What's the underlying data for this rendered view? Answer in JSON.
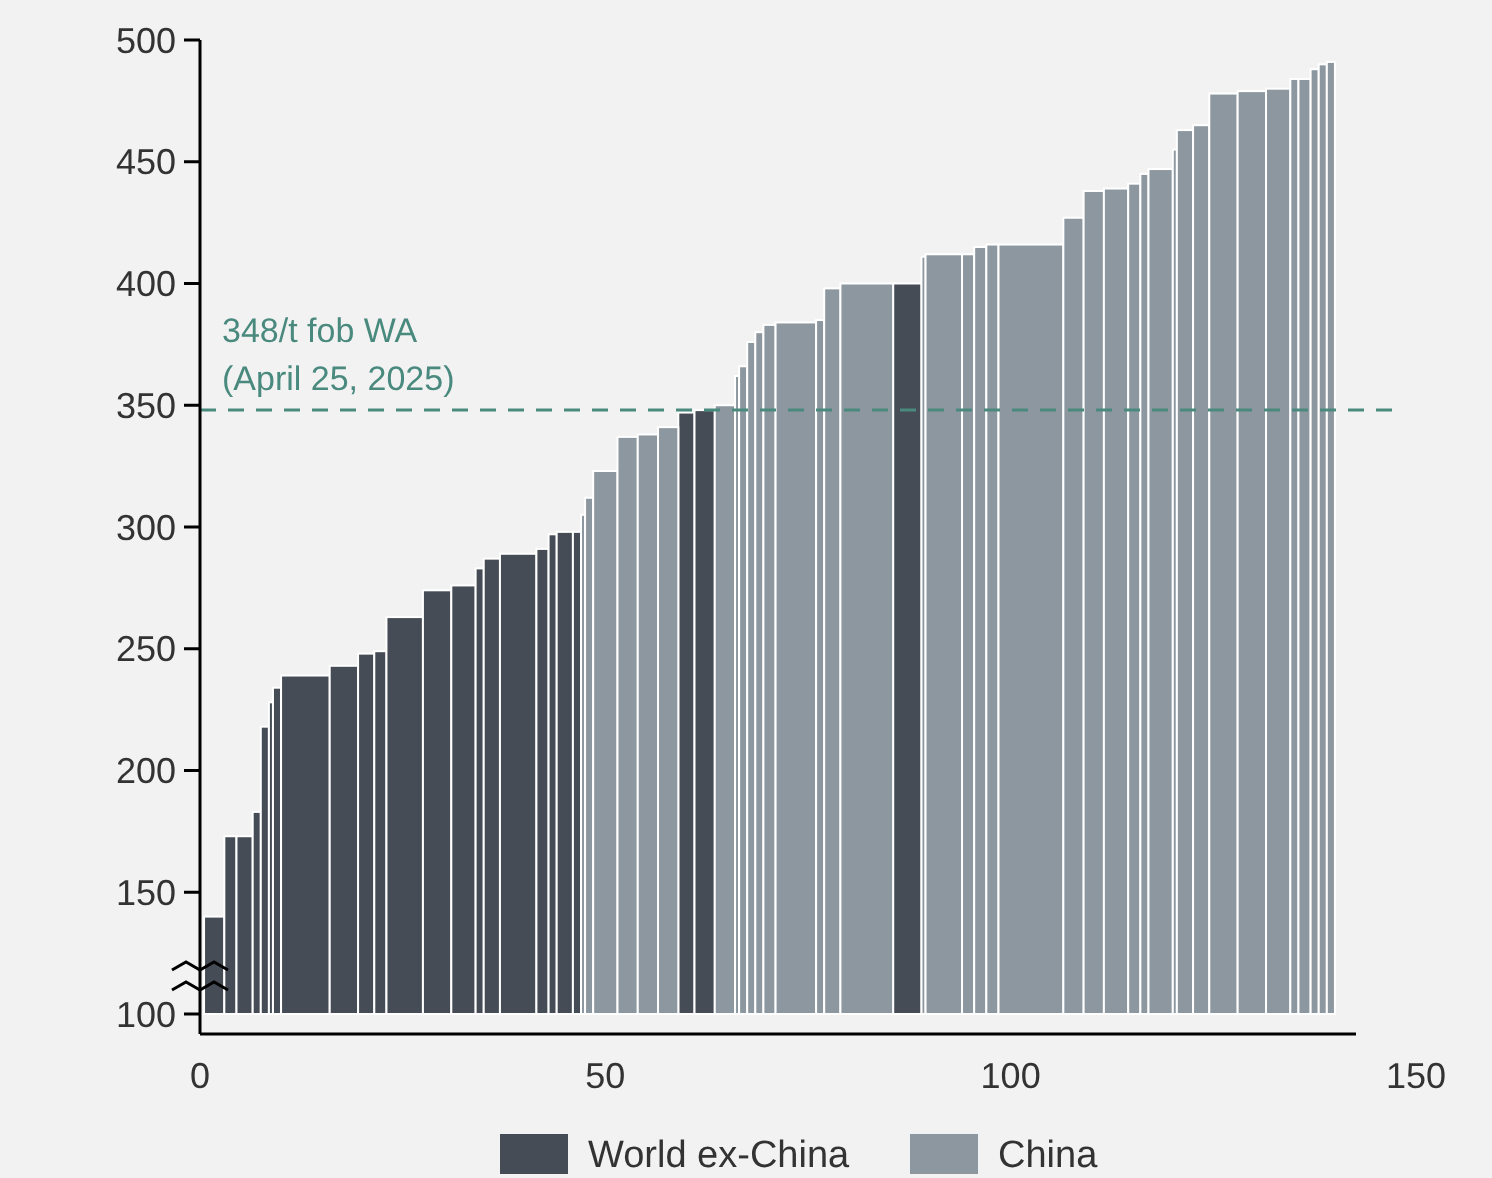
{
  "chart_data": {
    "type": "histogram",
    "bins": [
      0.5,
      3,
      4.5,
      6.5,
      7.5,
      8.5,
      9,
      10,
      16,
      19.5,
      21.5,
      23,
      27.5,
      31,
      34,
      35,
      37,
      41.5,
      43,
      44,
      46,
      47,
      47.5,
      48.5,
      51.5,
      54,
      56.5,
      59,
      61,
      63.5,
      66,
      66.5,
      67.5,
      68.5,
      69.5,
      71,
      76,
      77,
      79,
      85.5,
      89,
      89.5,
      94,
      95.5,
      97,
      98.5,
      106.5,
      109,
      111.5,
      114.5,
      116,
      117,
      120,
      120.5,
      122.5,
      124.5,
      128,
      131.5,
      134.5,
      135.5,
      137,
      138,
      139,
      140
    ],
    "series": [
      {
        "name": "World ex-China",
        "color": "#454c55",
        "values": [
          140,
          173,
          173,
          183,
          218,
          228,
          234,
          239,
          243,
          248,
          249,
          263,
          274,
          276,
          283,
          287,
          289,
          291,
          297,
          298,
          298,
          null,
          null,
          null,
          null,
          null,
          null,
          347,
          348,
          null,
          null,
          null,
          null,
          null,
          null,
          null,
          null,
          null,
          null,
          400,
          null,
          null,
          null,
          null,
          null,
          null,
          null,
          null,
          null,
          null,
          null,
          null,
          null,
          null,
          null,
          null,
          null,
          null,
          null,
          null,
          null,
          null,
          null
        ]
      },
      {
        "name": "China",
        "color": "#8c979f",
        "values": [
          null,
          null,
          null,
          null,
          null,
          null,
          null,
          null,
          null,
          null,
          null,
          null,
          null,
          null,
          null,
          null,
          null,
          null,
          null,
          null,
          null,
          305,
          312,
          323,
          337,
          338,
          341,
          null,
          null,
          350,
          362,
          366,
          376,
          380,
          383,
          384,
          385,
          398,
          400,
          null,
          411,
          412,
          412,
          415,
          416,
          416,
          427,
          438,
          439,
          441,
          445,
          447,
          455,
          463,
          465,
          478,
          479,
          480,
          484,
          484,
          488,
          490,
          491
        ]
      }
    ],
    "xlim": [
      0,
      150
    ],
    "xticks": [
      0,
      50,
      100,
      150
    ],
    "ylim": [
      100,
      500
    ],
    "yticks": [
      100,
      150,
      200,
      250,
      300,
      350,
      400,
      450,
      500
    ],
    "ref_lines": [
      {
        "axis": "y",
        "value": 348,
        "label": "348/t fob WA\n(April 25, 2025)",
        "color": "#4a8a7e",
        "line_style": "dashed"
      }
    ],
    "legend": "bottom",
    "grid": false
  }
}
